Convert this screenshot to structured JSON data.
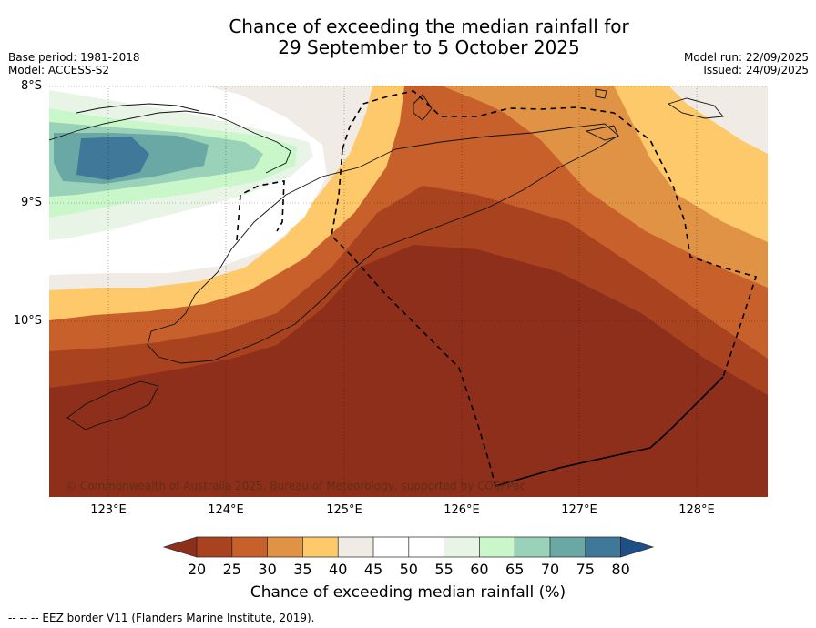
{
  "title_line1": "Chance of exceeding the median rainfall for",
  "title_line2": "29 September to 5 October 2025",
  "base_period": "Base period: 1981-2018",
  "model": "Model: ACCESS-S2",
  "model_run": "Model run: 22/09/2025",
  "issued": "Issued: 24/09/2025",
  "lat_labels": [
    "8°S",
    "9°S",
    "10°S"
  ],
  "lon_labels": [
    "123°E",
    "124°E",
    "125°E",
    "126°E",
    "127°E",
    "128°E"
  ],
  "copyright": "© Commonwealth of Australia 2025, Bureau of Meteorology, supported by COSPPac",
  "colorbar": {
    "label": "Chance of exceeding median rainfall (%)",
    "ticks": [
      "20",
      "25",
      "30",
      "35",
      "40",
      "45",
      "50",
      "55",
      "60",
      "65",
      "70",
      "75",
      "80"
    ],
    "colors": {
      "below20": "#8e2f1c",
      "b20_25": "#a9421f",
      "b25_30": "#c8602c",
      "b30_35": "#e09345",
      "b35_40": "#fdc96b",
      "b40_45": "#f0ece5",
      "b45_50": "#ffffff",
      "b50_55": "#ffffff",
      "b55_60": "#e8f5e6",
      "b60_65": "#caf7c9",
      "b65_70": "#99d1b9",
      "b70_75": "#6aa8a5",
      "b75_80": "#3f7898",
      "above80": "#1e4f86"
    }
  },
  "footnote": "--  --  -- EEZ border V11 (Flanders Marine Institute, 2019)."
}
